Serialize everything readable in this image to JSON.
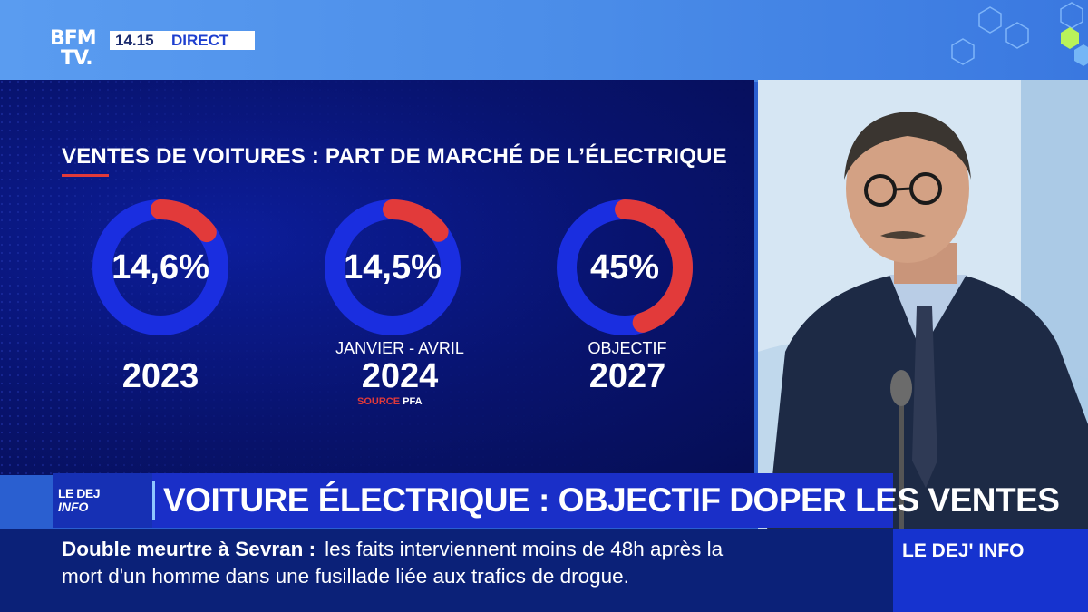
{
  "channel": {
    "logo_line1": "BFM",
    "logo_line2": "TV.",
    "time": "14.15",
    "live_label": "DIRECT"
  },
  "graphic": {
    "title": "VENTES DE VOITURES : PART DE MARCHÉ DE L’ÉLECTRIQUE",
    "accent_color": "#e23a3a",
    "ring_color": "#1a2ee0",
    "items": [
      {
        "percent_label": "14,6%",
        "share": 0.146,
        "sublabel": "",
        "year": "2023"
      },
      {
        "percent_label": "14,5%",
        "share": 0.145,
        "sublabel": "JANVIER - AVRIL",
        "year": "2024"
      },
      {
        "percent_label": "45%",
        "share": 0.45,
        "sublabel": "OBJECTIF",
        "year": "2027"
      }
    ],
    "source_label": "SOURCE",
    "source_name": "PFA"
  },
  "headline": {
    "tag_line1": "LE DEJ",
    "tag_line2": "INFO",
    "text": "VOITURE ÉLECTRIQUE : OBJECTIF DOPER LES VENTES"
  },
  "ticker": {
    "lead": "Double meurtre à Sevran  :",
    "line1": "les faits interviennent moins de 48h après la",
    "line2": "mort d'un homme dans une fusillade liée aux trafics de drogue."
  },
  "program_tag": "LE DEJ' INFO"
}
